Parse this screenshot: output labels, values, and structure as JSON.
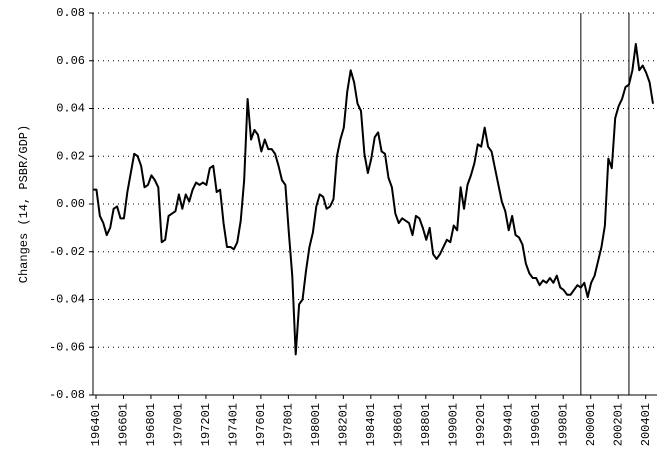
{
  "chart_data": {
    "type": "line",
    "ylabel": "Changes (14, PSBR/GDP)",
    "x": [
      1964,
      1964.25,
      1964.5,
      1964.75,
      1965,
      1965.25,
      1965.5,
      1965.75,
      1966,
      1966.25,
      1966.5,
      1966.75,
      1967,
      1967.25,
      1967.5,
      1967.75,
      1968,
      1968.25,
      1968.5,
      1968.75,
      1969,
      1969.25,
      1969.5,
      1969.75,
      1970,
      1970.25,
      1970.5,
      1970.75,
      1971,
      1971.25,
      1971.5,
      1971.75,
      1972,
      1972.25,
      1972.5,
      1972.75,
      1973,
      1973.25,
      1973.5,
      1973.75,
      1974,
      1974.25,
      1974.5,
      1974.75,
      1975,
      1975.25,
      1975.5,
      1975.75,
      1976,
      1976.25,
      1976.5,
      1976.75,
      1977,
      1977.25,
      1977.5,
      1977.75,
      1978,
      1978.25,
      1978.5,
      1978.75,
      1979,
      1979.25,
      1979.5,
      1979.75,
      1980,
      1980.25,
      1980.5,
      1980.75,
      1981,
      1981.25,
      1981.5,
      1981.75,
      1982,
      1982.25,
      1982.5,
      1982.75,
      1983,
      1983.25,
      1983.5,
      1983.75,
      1984,
      1984.25,
      1984.5,
      1984.75,
      1985,
      1985.25,
      1985.5,
      1985.75,
      1986,
      1986.25,
      1986.5,
      1986.75,
      1987,
      1987.25,
      1987.5,
      1987.75,
      1988,
      1988.25,
      1988.5,
      1988.75,
      1989,
      1989.25,
      1989.5,
      1989.75,
      1990,
      1990.25,
      1990.5,
      1990.75,
      1991,
      1991.25,
      1991.5,
      1991.75,
      1992,
      1992.25,
      1992.5,
      1992.75,
      1993,
      1993.25,
      1993.5,
      1993.75,
      1994,
      1994.25,
      1994.5,
      1994.75,
      1995,
      1995.25,
      1995.5,
      1995.75,
      1996,
      1996.25,
      1996.5,
      1996.75,
      1997,
      1997.25,
      1997.5,
      1997.75,
      1998,
      1998.25,
      1998.5,
      1998.75,
      1999,
      1999.25,
      1999.5,
      1999.75,
      2000,
      2000.25,
      2000.5,
      2000.75,
      2001,
      2001.25,
      2001.5,
      2001.75,
      2002,
      2002.25,
      2002.5,
      2002.75,
      2003,
      2003.25,
      2003.5,
      2003.75,
      2004,
      2004.25,
      2004.5,
      2004.75
    ],
    "series": [
      {
        "color": "#000000",
        "values": [
          0.006,
          0.006,
          -0.005,
          -0.008,
          -0.013,
          -0.01,
          -0.002,
          -0.001,
          -0.006,
          -0.006,
          0.005,
          0.013,
          0.021,
          0.02,
          0.016,
          0.007,
          0.008,
          0.012,
          0.01,
          0.007,
          -0.016,
          -0.015,
          -0.005,
          -0.004,
          -0.003,
          0.004,
          -0.002,
          0.004,
          0.001,
          0.006,
          0.009,
          0.008,
          0.009,
          0.008,
          0.015,
          0.016,
          0.005,
          0.006,
          -0.008,
          -0.018,
          -0.018,
          -0.019,
          -0.016,
          -0.007,
          0.01,
          0.044,
          0.027,
          0.031,
          0.029,
          0.022,
          0.027,
          0.023,
          0.023,
          0.021,
          0.016,
          0.01,
          0.008,
          -0.012,
          -0.03,
          -0.063,
          -0.042,
          -0.04,
          -0.028,
          -0.018,
          -0.012,
          -0.001,
          0.004,
          0.003,
          -0.002,
          -0.001,
          0.002,
          0.02,
          0.027,
          0.032,
          0.047,
          0.056,
          0.051,
          0.042,
          0.039,
          0.021,
          0.013,
          0.019,
          0.028,
          0.03,
          0.022,
          0.021,
          0.011,
          0.007,
          -0.004,
          -0.008,
          -0.006,
          -0.007,
          -0.008,
          -0.013,
          -0.005,
          -0.006,
          -0.01,
          -0.015,
          -0.01,
          -0.021,
          -0.023,
          -0.021,
          -0.018,
          -0.015,
          -0.016,
          -0.009,
          -0.011,
          0.007,
          -0.002,
          0.008,
          0.012,
          0.017,
          0.025,
          0.024,
          0.032,
          0.024,
          0.022,
          0.015,
          0.008,
          0.001,
          -0.003,
          -0.011,
          -0.005,
          -0.013,
          -0.014,
          -0.017,
          -0.025,
          -0.029,
          -0.031,
          -0.031,
          -0.034,
          -0.032,
          -0.033,
          -0.031,
          -0.033,
          -0.03,
          -0.035,
          -0.036,
          -0.038,
          -0.038,
          -0.036,
          -0.034,
          -0.035,
          -0.033,
          -0.039,
          -0.033,
          -0.03,
          -0.024,
          -0.018,
          -0.009,
          0.019,
          0.015,
          0.036,
          0.041,
          0.044,
          0.049,
          0.05,
          0.056,
          0.067,
          0.056,
          0.058,
          0.055,
          0.051,
          0.042
        ]
      }
    ],
    "xlim": [
      1964,
      2004.75
    ],
    "xticks": [
      {
        "value": 1964,
        "label": "196401"
      },
      {
        "value": 1966,
        "label": "196601"
      },
      {
        "value": 1968,
        "label": "196801"
      },
      {
        "value": 1970,
        "label": "197001"
      },
      {
        "value": 1972,
        "label": "197201"
      },
      {
        "value": 1974,
        "label": "197401"
      },
      {
        "value": 1976,
        "label": "197601"
      },
      {
        "value": 1978,
        "label": "197801"
      },
      {
        "value": 1980,
        "label": "198001"
      },
      {
        "value": 1982,
        "label": "198201"
      },
      {
        "value": 1984,
        "label": "198401"
      },
      {
        "value": 1986,
        "label": "198601"
      },
      {
        "value": 1988,
        "label": "198801"
      },
      {
        "value": 1990,
        "label": "199001"
      },
      {
        "value": 1992,
        "label": "199201"
      },
      {
        "value": 1994,
        "label": "199401"
      },
      {
        "value": 1996,
        "label": "199601"
      },
      {
        "value": 1998,
        "label": "199801"
      },
      {
        "value": 2000,
        "label": "200001"
      },
      {
        "value": 2002,
        "label": "200201"
      },
      {
        "value": 2004,
        "label": "200401"
      }
    ],
    "ylim": [
      -0.08,
      0.08
    ],
    "yticks": [
      -0.08,
      -0.06,
      -0.04,
      -0.02,
      {
        "value": 0,
        "label": "0.00"
      },
      0.02,
      0.04,
      0.06,
      0.08
    ],
    "grid": true,
    "vlines": [
      1999.5,
      2003.0
    ]
  }
}
